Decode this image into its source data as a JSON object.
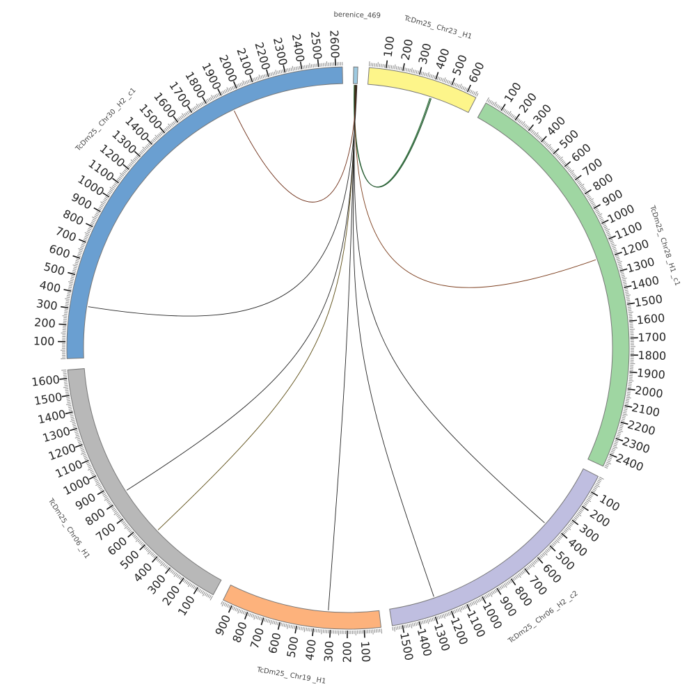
{
  "chart_data": {
    "type": "circos",
    "segments": [
      {
        "name": "berenice_469",
        "length": 25,
        "color": "#9ecae1",
        "tick_step": 0,
        "ticks": []
      },
      {
        "name": "TcDm25_ Chr23 _H1",
        "length": 660,
        "color": "#fdf58a",
        "tick_step": 100,
        "ticks": [
          100,
          200,
          300,
          400,
          500,
          600
        ]
      },
      {
        "name": "TcDm25_ Chr28 _H1 _c1",
        "length": 2480,
        "color": "#9fd6a2",
        "tick_step": 100,
        "ticks": [
          100,
          200,
          300,
          400,
          500,
          600,
          700,
          800,
          900,
          1000,
          1100,
          1200,
          1300,
          1400,
          1500,
          1600,
          1700,
          1800,
          1900,
          2000,
          2100,
          2200,
          2300,
          2400
        ]
      },
      {
        "name": "TcDm25_ Chr06 _H2 _c2",
        "length": 1560,
        "color": "#bfbee0",
        "tick_step": 100,
        "ticks": [
          100,
          200,
          300,
          400,
          500,
          600,
          700,
          800,
          900,
          1000,
          1100,
          1200,
          1300,
          1400,
          1500
        ]
      },
      {
        "name": "TcDm25_ Chr19 _H1",
        "length": 960,
        "color": "#fdb27c",
        "tick_step": 100,
        "ticks": [
          100,
          200,
          300,
          400,
          500,
          600,
          700,
          800,
          900
        ]
      },
      {
        "name": "TcDm25_ Chr06 _H1",
        "length": 1650,
        "color": "#b8b8b8",
        "tick_step": 100,
        "ticks": [
          100,
          200,
          300,
          400,
          500,
          600,
          700,
          800,
          900,
          1000,
          1100,
          1200,
          1300,
          1400,
          1500,
          1600
        ]
      },
      {
        "name": "TcDm25_ Chr30 _H2 _c1",
        "length": 2640,
        "color": "#6a9fd1",
        "tick_step": 100,
        "ticks": [
          100,
          200,
          300,
          400,
          500,
          600,
          700,
          800,
          900,
          1000,
          1100,
          1200,
          1300,
          1400,
          1500,
          1600,
          1700,
          1800,
          1900,
          2000,
          2100,
          2200,
          2300,
          2400,
          2500,
          2600
        ]
      }
    ],
    "links": [
      {
        "from": "berenice_469",
        "from_pos": 5,
        "to": "TcDm25_ Chr23 _H1",
        "to_pos": 400,
        "color": "#2e6b3a"
      },
      {
        "from": "berenice_469",
        "from_pos": 7,
        "to": "TcDm25_ Chr23 _H1",
        "to_pos": 405,
        "color": "#3b7a48"
      },
      {
        "from": "berenice_469",
        "from_pos": 9,
        "to": "TcDm25_ Chr23 _H1",
        "to_pos": 410,
        "color": "#1f4f2a"
      },
      {
        "from": "berenice_469",
        "from_pos": 11,
        "to": "TcDm25_ Chr28 _H1 _c1",
        "to_pos": 1190,
        "color": "#7a3b1a"
      },
      {
        "from": "berenice_469",
        "from_pos": 13,
        "to": "TcDm25_ Chr06 _H2 _c2",
        "to_pos": 420,
        "color": "#222222"
      },
      {
        "from": "berenice_469",
        "from_pos": 14,
        "to": "TcDm25_ Chr06 _H2 _c2",
        "to_pos": 1270,
        "color": "#222222"
      },
      {
        "from": "berenice_469",
        "from_pos": 15,
        "to": "TcDm25_ Chr19 _H1",
        "to_pos": 320,
        "color": "#222222"
      },
      {
        "from": "berenice_469",
        "from_pos": 17,
        "to": "TcDm25_ Chr06 _H1",
        "to_pos": 510,
        "color": "#5a4a10"
      },
      {
        "from": "berenice_469",
        "from_pos": 19,
        "to": "TcDm25_ Chr06 _H1",
        "to_pos": 830,
        "color": "#222222"
      },
      {
        "from": "berenice_469",
        "from_pos": 21,
        "to": "TcDm25_ Chr30 _H2 _c1",
        "to_pos": 1930,
        "color": "#6b2a12"
      },
      {
        "from": "berenice_469",
        "from_pos": 23,
        "to": "TcDm25_ Chr30 _H2 _c1",
        "to_pos": 325,
        "color": "#222222"
      }
    ]
  }
}
